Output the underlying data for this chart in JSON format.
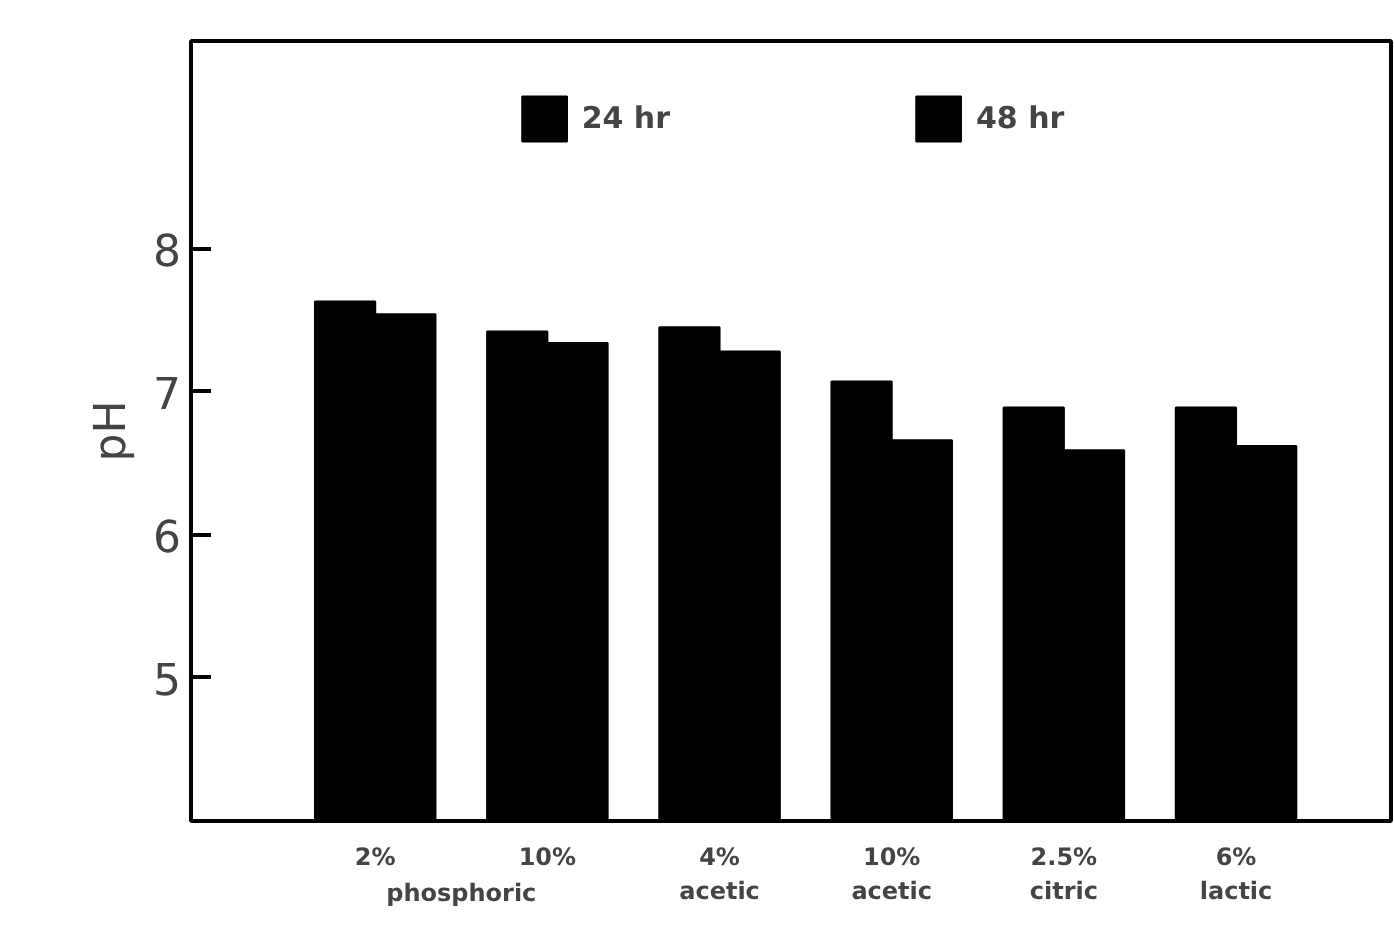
{
  "chart_data": {
    "type": "bar",
    "ylabel": "pH",
    "categories": [
      "2%",
      "10%",
      "4%\nacetic",
      "10%\nacetic",
      "2.5%\ncitric",
      "6%\nlactic"
    ],
    "series": [
      {
        "name": "24 hr",
        "color": "#000000",
        "values": [
          7.63,
          7.42,
          7.45,
          7.07,
          6.89,
          6.89
        ]
      },
      {
        "name": "48 hr",
        "color": "#000000",
        "values": [
          7.54,
          7.34,
          7.28,
          6.66,
          6.59,
          6.62
        ]
      }
    ],
    "annotations": [
      "phosphoric"
    ],
    "ylim": [
      4.0,
      9.45
    ],
    "yticks": [
      5,
      6,
      7,
      8
    ],
    "grid": false,
    "legend": "top"
  }
}
